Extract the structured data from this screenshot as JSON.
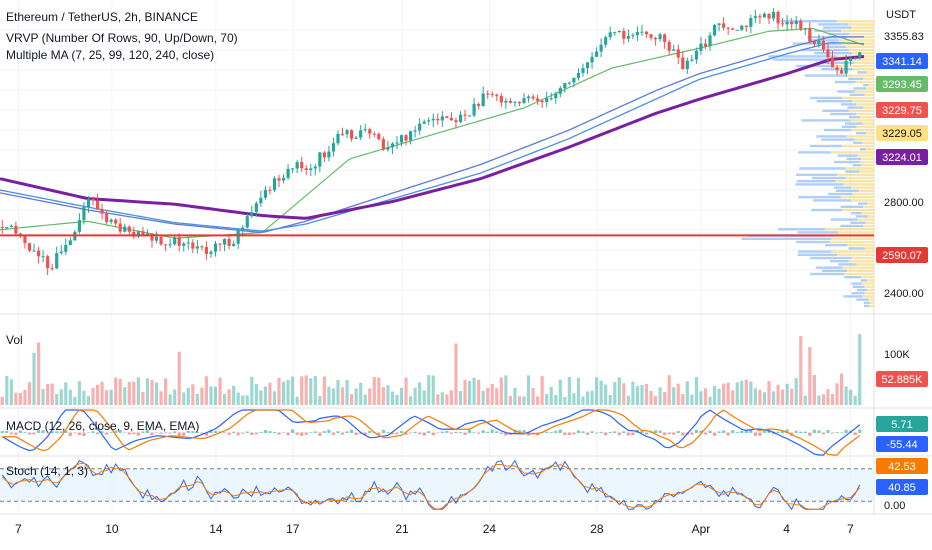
{
  "legend": {
    "symbol": "Ethereum / TetherUS, 2h, BINANCE",
    "vrvp": "VRVP (Number Of Rows, 90, Up/Down, 70)",
    "ma": "Multiple MA (7, 25, 99, 120, 240, close)",
    "vol": "Vol",
    "macd": "MACD (12, 26, close, 9, EMA, EMA)",
    "stoch": "Stoch (14, 1, 3)"
  },
  "axis_unit": "USDT",
  "colors": {
    "up": "#26a69a",
    "down": "#ef5350",
    "ma7": "#9ccc9c",
    "ma25": "#66bb6a",
    "ma99": "#5c7cd6",
    "ma120": "#4a90e2",
    "ma240": "#7b1fa2",
    "level": "#e53935",
    "macd": "#2962ff",
    "signal": "#f57c00",
    "stoch_k": "#2962ff",
    "stoch_d": "#f57c00",
    "vp_up": "#6ea8f7",
    "vp_down": "#f5d36b"
  },
  "chart_data": {
    "type": "candlestick",
    "price_axis": {
      "ylim": [
        2320,
        3420
      ],
      "ticks": [
        "2400.00",
        "2800.00",
        "3355.83"
      ],
      "badges": [
        {
          "label": "3341.14",
          "value": 3341.14,
          "color": "#2962ff"
        },
        {
          "label": "3293.45",
          "value": 3293.45,
          "color": "#66bb6a"
        },
        {
          "label": "3229.75",
          "value": 3229.75,
          "color": "#ef5350"
        },
        {
          "label": "3229.05",
          "value": 3229.05,
          "color": "#ffe082"
        },
        {
          "label": "3224.01",
          "value": 3224.01,
          "color": "#7b1fa2"
        },
        {
          "label": "2590.07",
          "value": 2590.07,
          "color": "#e53935"
        }
      ]
    },
    "x_ticks": [
      "7",
      "10",
      "14",
      "17",
      "21",
      "24",
      "28",
      "Apr",
      "4",
      "7"
    ],
    "x_tick_positions": [
      0.021,
      0.128,
      0.247,
      0.335,
      0.46,
      0.56,
      0.683,
      0.802,
      0.9,
      0.973
    ],
    "price_path": [
      [
        0.0,
        2620
      ],
      [
        0.02,
        2590
      ],
      [
        0.04,
        2520
      ],
      [
        0.055,
        2480
      ],
      [
        0.075,
        2560
      ],
      [
        0.1,
        2720
      ],
      [
        0.125,
        2640
      ],
      [
        0.15,
        2590
      ],
      [
        0.18,
        2580
      ],
      [
        0.21,
        2560
      ],
      [
        0.24,
        2530
      ],
      [
        0.27,
        2580
      ],
      [
        0.29,
        2660
      ],
      [
        0.31,
        2760
      ],
      [
        0.335,
        2830
      ],
      [
        0.36,
        2830
      ],
      [
        0.39,
        2930
      ],
      [
        0.42,
        2960
      ],
      [
        0.45,
        2900
      ],
      [
        0.47,
        2940
      ],
      [
        0.5,
        3020
      ],
      [
        0.53,
        2990
      ],
      [
        0.56,
        3070
      ],
      [
        0.58,
        3080
      ],
      [
        0.6,
        3060
      ],
      [
        0.63,
        3070
      ],
      [
        0.655,
        3120
      ],
      [
        0.68,
        3180
      ],
      [
        0.7,
        3280
      ],
      [
        0.72,
        3300
      ],
      [
        0.74,
        3290
      ],
      [
        0.76,
        3300
      ],
      [
        0.78,
        3250
      ],
      [
        0.795,
        3175
      ],
      [
        0.81,
        3230
      ],
      [
        0.835,
        3340
      ],
      [
        0.86,
        3330
      ],
      [
        0.88,
        3350
      ],
      [
        0.9,
        3360
      ],
      [
        0.92,
        3340
      ],
      [
        0.935,
        3310
      ],
      [
        0.95,
        3270
      ],
      [
        0.965,
        3200
      ],
      [
        0.975,
        3150
      ],
      [
        0.985,
        3200
      ],
      [
        1.0,
        3230
      ]
    ],
    "ma_paths": {
      "ma25": [
        [
          0.0,
          2610
        ],
        [
          0.1,
          2640
        ],
        [
          0.2,
          2580
        ],
        [
          0.3,
          2600
        ],
        [
          0.4,
          2860
        ],
        [
          0.5,
          2950
        ],
        [
          0.6,
          3040
        ],
        [
          0.7,
          3180
        ],
        [
          0.8,
          3250
        ],
        [
          0.88,
          3310
        ],
        [
          0.93,
          3320
        ],
        [
          1.0,
          3250
        ]
      ],
      "ma99": [
        [
          0.0,
          2740
        ],
        [
          0.1,
          2680
        ],
        [
          0.2,
          2630
        ],
        [
          0.3,
          2600
        ],
        [
          0.35,
          2640
        ],
        [
          0.45,
          2740
        ],
        [
          0.55,
          2840
        ],
        [
          0.65,
          2960
        ],
        [
          0.75,
          3100
        ],
        [
          0.8,
          3160
        ],
        [
          0.9,
          3250
        ],
        [
          0.95,
          3290
        ],
        [
          1.0,
          3290
        ]
      ],
      "ma120": [
        [
          0.0,
          2750
        ],
        [
          0.1,
          2690
        ],
        [
          0.2,
          2635
        ],
        [
          0.3,
          2605
        ],
        [
          0.35,
          2630
        ],
        [
          0.45,
          2720
        ],
        [
          0.55,
          2810
        ],
        [
          0.65,
          2930
        ],
        [
          0.75,
          3070
        ],
        [
          0.8,
          3140
        ],
        [
          0.9,
          3230
        ],
        [
          0.95,
          3270
        ],
        [
          1.0,
          3265
        ]
      ],
      "ma240": [
        [
          0.0,
          2790
        ],
        [
          0.1,
          2720
        ],
        [
          0.2,
          2700
        ],
        [
          0.3,
          2660
        ],
        [
          0.35,
          2650
        ],
        [
          0.45,
          2710
        ],
        [
          0.55,
          2790
        ],
        [
          0.65,
          2900
        ],
        [
          0.75,
          3020
        ],
        [
          0.8,
          3070
        ],
        [
          0.9,
          3160
        ],
        [
          0.95,
          3210
        ],
        [
          1.0,
          3224
        ]
      ]
    },
    "level_line": 2590.07,
    "volume": {
      "ylim": [
        0,
        140
      ],
      "ticks": [
        "100K"
      ],
      "last": "52.885K",
      "last_color": "#ef5350"
    },
    "macd": {
      "ylim": [
        -80,
        80
      ],
      "badges": [
        {
          "label": "5.71",
          "color": "#26a69a"
        },
        {
          "label": "-55.44",
          "color": "#2962ff"
        }
      ]
    },
    "stoch": {
      "ylim": [
        0,
        100
      ],
      "ticks": [
        "0.00"
      ],
      "bands": [
        20,
        80
      ],
      "badges": [
        {
          "label": "42.53",
          "color": "#f57c00"
        },
        {
          "label": "40.85",
          "color": "#2962ff"
        }
      ]
    }
  }
}
